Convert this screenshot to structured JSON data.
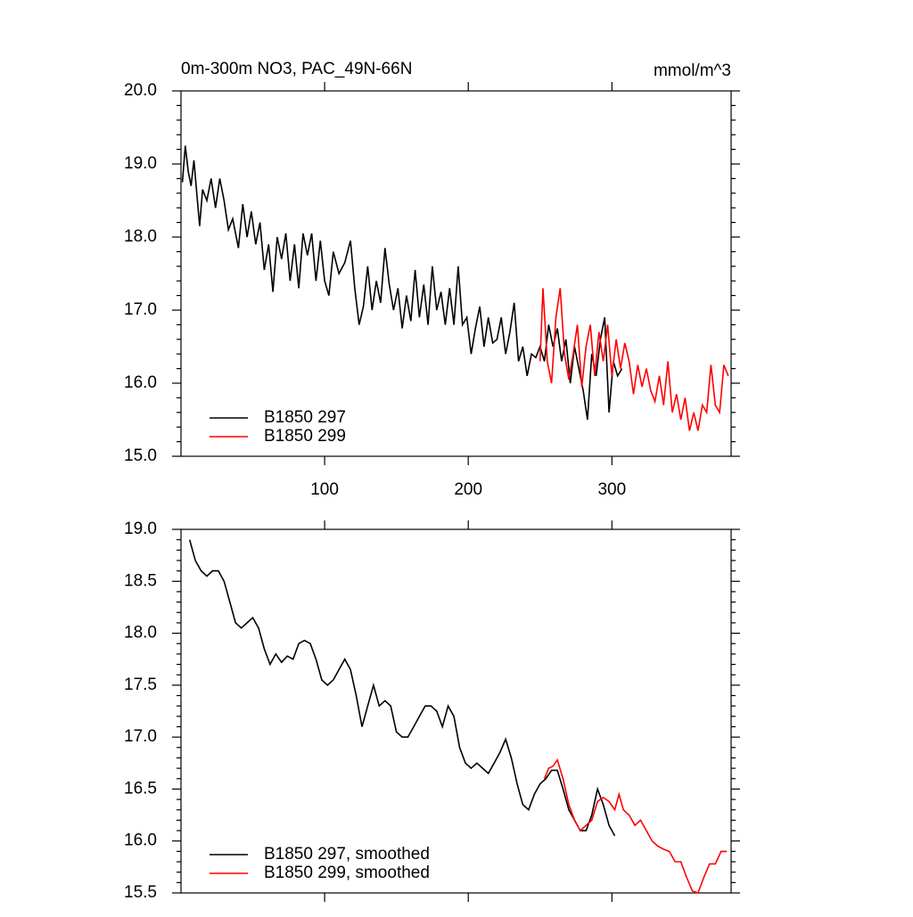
{
  "chart_data": [
    {
      "type": "line",
      "title": "0m-300m NO3, PAC_49N-66N",
      "units_label": "mmol/m^3",
      "xlim": [
        0,
        383
      ],
      "xticks": [
        100,
        200,
        300
      ],
      "show_xtick_labels": true,
      "ylim": [
        15,
        20
      ],
      "yticks": [
        {
          "value": 15,
          "label": "15.0"
        },
        {
          "value": 16,
          "label": "16.0"
        },
        {
          "value": 17,
          "label": "17.0"
        },
        {
          "value": 18,
          "label": "18.0"
        },
        {
          "value": 19,
          "label": "19.0"
        },
        {
          "value": 20,
          "label": "20.0"
        }
      ],
      "legend": "lower left",
      "series": [
        {
          "name": "B1850 297",
          "color": "#000000",
          "x": [
            1,
            3,
            5,
            7,
            9,
            11,
            13,
            15,
            18,
            21,
            24,
            27,
            30,
            33,
            36,
            40,
            43,
            46,
            49,
            52,
            55,
            58,
            61,
            64,
            67,
            70,
            73,
            76,
            79,
            82,
            85,
            88,
            91,
            94,
            97,
            100,
            103,
            106,
            110,
            114,
            118,
            121,
            124,
            127,
            130,
            133,
            136,
            139,
            142,
            145,
            148,
            151,
            154,
            157,
            160,
            163,
            166,
            169,
            172,
            175,
            178,
            181,
            184,
            187,
            190,
            193,
            196,
            199,
            202,
            205,
            208,
            211,
            214,
            217,
            220,
            223,
            226,
            229,
            232,
            235,
            238,
            241,
            244,
            247,
            250,
            253,
            256,
            259,
            262,
            265,
            268,
            271,
            274,
            277,
            280,
            283,
            286,
            289,
            292,
            295,
            298,
            301,
            304,
            307
          ],
          "values": [
            18.75,
            19.25,
            18.9,
            18.7,
            19.05,
            18.6,
            18.15,
            18.65,
            18.5,
            18.8,
            18.4,
            18.8,
            18.5,
            18.1,
            18.25,
            17.85,
            18.45,
            18.0,
            18.35,
            17.9,
            18.2,
            17.55,
            17.9,
            17.25,
            18.0,
            17.7,
            18.05,
            17.4,
            17.9,
            17.3,
            18.05,
            17.75,
            18.05,
            17.4,
            17.95,
            17.4,
            17.2,
            17.8,
            17.5,
            17.65,
            17.95,
            17.3,
            16.8,
            17.05,
            17.6,
            17.0,
            17.4,
            17.1,
            17.85,
            17.35,
            17.0,
            17.3,
            16.75,
            17.2,
            16.85,
            17.55,
            16.9,
            17.35,
            16.8,
            17.6,
            17.0,
            17.25,
            16.8,
            17.3,
            16.8,
            17.6,
            16.8,
            16.9,
            16.4,
            16.75,
            17.05,
            16.5,
            16.9,
            16.55,
            16.6,
            16.9,
            16.4,
            16.7,
            17.1,
            16.3,
            16.5,
            16.1,
            16.4,
            16.35,
            16.5,
            16.3,
            16.8,
            16.5,
            16.75,
            16.3,
            16.6,
            16.0,
            16.5,
            16.2,
            15.9,
            15.5,
            16.4,
            16.1,
            16.6,
            16.9,
            15.6,
            16.3,
            16.1,
            16.2
          ]
        },
        {
          "name": "B1850 299",
          "color": "#ff0000",
          "x": [
            250,
            252,
            255,
            258,
            261,
            264,
            267,
            270,
            273,
            276,
            279,
            282,
            285,
            288,
            291,
            294,
            297,
            300,
            303,
            306,
            309,
            312,
            315,
            318,
            321,
            324,
            327,
            330,
            333,
            336,
            339,
            342,
            345,
            348,
            351,
            354,
            357,
            360,
            363,
            366,
            369,
            372,
            375,
            378,
            381
          ],
          "values": [
            16.3,
            17.3,
            16.3,
            16.0,
            16.9,
            17.3,
            16.4,
            16.05,
            16.4,
            16.8,
            15.95,
            16.5,
            16.8,
            16.1,
            16.7,
            16.3,
            16.8,
            16.1,
            16.6,
            16.2,
            16.55,
            16.3,
            15.85,
            16.25,
            15.95,
            16.2,
            15.9,
            15.75,
            16.1,
            15.7,
            16.3,
            15.6,
            15.85,
            15.5,
            15.8,
            15.35,
            15.6,
            15.35,
            15.7,
            15.6,
            16.25,
            15.7,
            15.6,
            16.25,
            16.1
          ]
        }
      ]
    },
    {
      "type": "line",
      "xlim": [
        0,
        383
      ],
      "xticks": [
        100,
        200,
        300
      ],
      "show_xtick_labels": false,
      "ylim": [
        15.5,
        19
      ],
      "yticks": [
        {
          "value": 15.5,
          "label": "15.5"
        },
        {
          "value": 16,
          "label": "16.0"
        },
        {
          "value": 16.5,
          "label": "16.5"
        },
        {
          "value": 17,
          "label": "17.0"
        },
        {
          "value": 17.5,
          "label": "17.5"
        },
        {
          "value": 18,
          "label": "18.0"
        },
        {
          "value": 18.5,
          "label": "18.5"
        },
        {
          "value": 19,
          "label": "19.0"
        }
      ],
      "legend": "lower left",
      "series": [
        {
          "name": "B1850 297, smoothed",
          "color": "#000000",
          "x": [
            6,
            10,
            14,
            18,
            22,
            26,
            30,
            34,
            38,
            42,
            46,
            50,
            54,
            58,
            62,
            66,
            70,
            74,
            78,
            82,
            86,
            90,
            94,
            98,
            102,
            106,
            110,
            114,
            118,
            122,
            126,
            130,
            134,
            138,
            142,
            146,
            150,
            154,
            158,
            162,
            166,
            170,
            174,
            178,
            182,
            186,
            190,
            194,
            198,
            202,
            206,
            210,
            214,
            218,
            222,
            226,
            230,
            234,
            238,
            242,
            246,
            250,
            254,
            258,
            262,
            266,
            270,
            274,
            278,
            282,
            286,
            290,
            294,
            298,
            302
          ],
          "values": [
            18.9,
            18.7,
            18.6,
            18.55,
            18.6,
            18.6,
            18.5,
            18.3,
            18.1,
            18.05,
            18.1,
            18.15,
            18.05,
            17.85,
            17.7,
            17.8,
            17.72,
            17.78,
            17.75,
            17.9,
            17.93,
            17.9,
            17.75,
            17.55,
            17.5,
            17.55,
            17.65,
            17.75,
            17.65,
            17.4,
            17.1,
            17.3,
            17.5,
            17.3,
            17.35,
            17.3,
            17.05,
            17.0,
            17.0,
            17.1,
            17.2,
            17.3,
            17.3,
            17.25,
            17.1,
            17.3,
            17.2,
            16.9,
            16.75,
            16.7,
            16.75,
            16.7,
            16.65,
            16.75,
            16.85,
            16.98,
            16.8,
            16.55,
            16.35,
            16.3,
            16.45,
            16.55,
            16.6,
            16.68,
            16.68,
            16.5,
            16.3,
            16.2,
            16.1,
            16.1,
            16.25,
            16.5,
            16.35,
            16.15,
            16.05
          ]
        },
        {
          "name": "B1850 299, smoothed",
          "color": "#ff0000",
          "x": [
            253,
            256,
            259,
            262,
            266,
            270,
            274,
            278,
            282,
            286,
            290,
            294,
            298,
            302,
            305,
            308,
            312,
            316,
            320,
            324,
            328,
            332,
            336,
            340,
            344,
            348,
            352,
            356,
            360,
            364,
            368,
            372,
            376,
            380
          ],
          "values": [
            16.6,
            16.7,
            16.72,
            16.78,
            16.6,
            16.35,
            16.2,
            16.1,
            16.15,
            16.2,
            16.38,
            16.42,
            16.38,
            16.3,
            16.45,
            16.3,
            16.25,
            16.15,
            16.2,
            16.1,
            16.0,
            15.95,
            15.92,
            15.9,
            15.8,
            15.8,
            15.65,
            15.52,
            15.5,
            15.65,
            15.78,
            15.78,
            15.9,
            15.9
          ]
        }
      ]
    }
  ]
}
